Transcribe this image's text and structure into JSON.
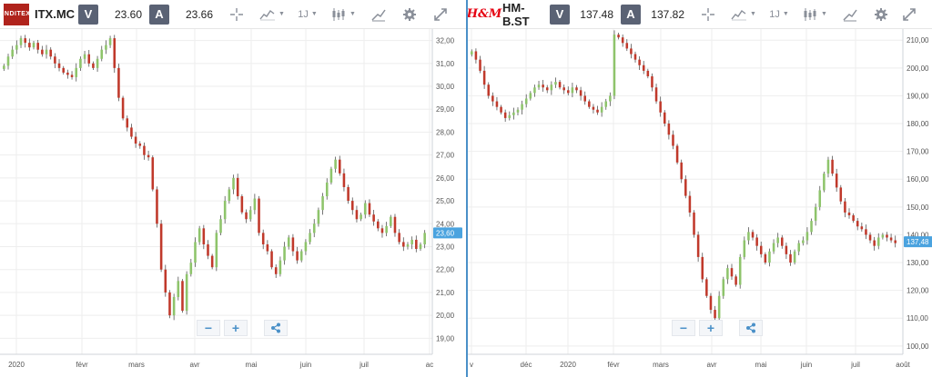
{
  "panels": [
    {
      "symbol": "ITX.MC",
      "logo_text": "INDITEX",
      "bid_label": "V",
      "bid_value": "23.60",
      "ask_label": "A",
      "ask_value": "23.66",
      "timeframe": "1J",
      "last_price_tag": "23,60",
      "chart_data": {
        "type": "candlestick",
        "x": [
          "2020",
          "févr",
          "mars",
          "avr",
          "mai",
          "juin",
          "juil",
          "ac"
        ],
        "y_ticks": [
          "32,00",
          "31,00",
          "30,00",
          "29,00",
          "28,00",
          "27,00",
          "26,00",
          "25,00",
          "24,00",
          "23,00",
          "22,00",
          "21,00",
          "20,00",
          "19,00"
        ],
        "ylim": [
          18.3,
          32.5
        ],
        "last": 23.6,
        "up_color": "#8ec46b",
        "down_color": "#c0392b",
        "closes": [
          30.9,
          31.3,
          31.6,
          31.8,
          32.1,
          31.9,
          31.7,
          31.9,
          31.6,
          31.4,
          31.6,
          31.3,
          31.0,
          30.8,
          30.6,
          30.5,
          30.4,
          30.8,
          31.2,
          31.4,
          31.0,
          30.8,
          31.2,
          31.6,
          31.8,
          32.1,
          30.8,
          29.5,
          28.6,
          28.2,
          27.8,
          27.5,
          27.4,
          27.0,
          26.9,
          25.5,
          24.0,
          22.0,
          21.0,
          20.0,
          20.8,
          21.5,
          20.2,
          21.8,
          22.3,
          23.2,
          23.8,
          23.1,
          22.6,
          22.1,
          23.6,
          24.2,
          25.0,
          25.5,
          26.0,
          25.2,
          24.5,
          24.2,
          24.6,
          25.1,
          23.6,
          23.1,
          22.8,
          22.1,
          21.8,
          22.4,
          23.0,
          23.4,
          22.8,
          22.4,
          22.8,
          23.2,
          23.6,
          24.0,
          24.6,
          25.2,
          25.8,
          26.4,
          26.8,
          26.2,
          25.6,
          25.0,
          24.6,
          24.2,
          24.4,
          24.9,
          24.4,
          24.1,
          23.8,
          23.6,
          23.9,
          24.3,
          23.6,
          23.2,
          23.0,
          23.1,
          23.3,
          22.9,
          23.1,
          23.6
        ]
      }
    },
    {
      "symbol": "HM-B.ST",
      "logo_text": "H&M",
      "bid_label": "V",
      "bid_value": "137.48",
      "ask_label": "A",
      "ask_value": "137.82",
      "timeframe": "1J",
      "last_price_tag": "137,48",
      "chart_data": {
        "type": "candlestick",
        "x": [
          "v",
          "déc",
          "2020",
          "févr",
          "mars",
          "avr",
          "mai",
          "juin",
          "juil",
          "août"
        ],
        "y_ticks": [
          "210,00",
          "200,00",
          "190,00",
          "180,00",
          "170,00",
          "160,00",
          "150,00",
          "140,00",
          "130,00",
          "120,00",
          "110,00",
          "100,00"
        ],
        "ylim": [
          97,
          214
        ],
        "last": 137.48,
        "up_color": "#8ec46b",
        "down_color": "#c0392b",
        "closes": [
          206,
          203,
          199,
          194,
          190,
          188,
          186,
          184,
          182,
          183,
          184,
          185,
          187,
          189,
          191,
          193,
          194,
          193,
          192,
          194,
          195,
          193,
          192,
          191,
          193,
          192,
          190,
          188,
          186,
          185,
          184,
          186,
          188,
          190,
          212,
          211,
          209,
          207,
          205,
          203,
          201,
          199,
          197,
          193,
          188,
          184,
          180,
          176,
          172,
          166,
          160,
          154,
          148,
          140,
          132,
          124,
          118,
          113,
          110,
          118,
          124,
          128,
          125,
          122,
          132,
          138,
          141,
          139,
          136,
          133,
          130,
          134,
          137,
          139,
          136,
          133,
          130,
          134,
          137,
          138,
          141,
          145,
          150,
          156,
          162,
          167,
          162,
          157,
          152,
          148,
          147,
          145,
          143,
          142,
          140,
          138,
          136,
          139,
          140,
          139,
          138,
          137
        ]
      }
    }
  ]
}
